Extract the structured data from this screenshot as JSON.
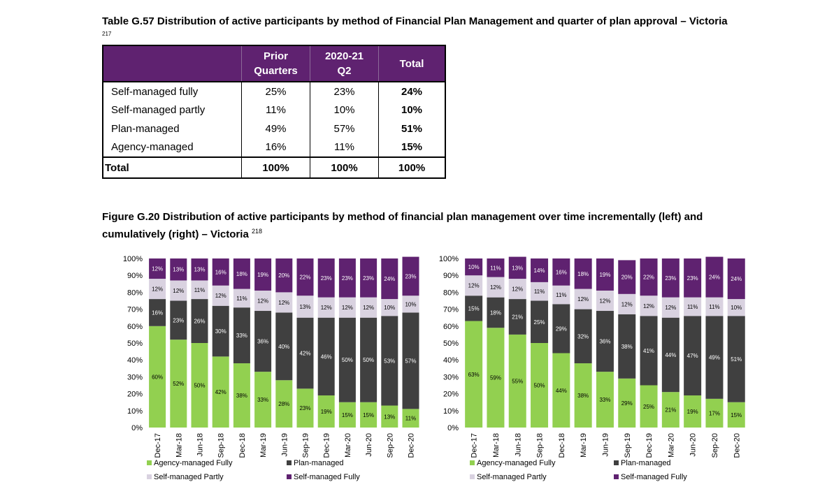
{
  "table": {
    "title": "Table G.57 Distribution of active participants by method of Financial Plan Management and quarter of plan approval – Victoria",
    "footnote_ref": "217",
    "headers": [
      "",
      "Prior Quarters",
      "2020-21 Q2",
      "Total"
    ],
    "header_lines": [
      [
        "",
        ""
      ],
      [
        "Prior",
        "Quarters"
      ],
      [
        "2020-21",
        "Q2"
      ],
      [
        "Total",
        ""
      ]
    ],
    "rows": [
      {
        "label": "Self-managed fully",
        "prior": "25%",
        "q2": "23%",
        "total": "24%"
      },
      {
        "label": "Self-managed partly",
        "prior": "11%",
        "q2": "10%",
        "total": "10%"
      },
      {
        "label": "Plan-managed",
        "prior": "49%",
        "q2": "57%",
        "total": "51%"
      },
      {
        "label": "Agency-managed",
        "prior": "16%",
        "q2": "11%",
        "total": "15%"
      }
    ],
    "total_row": {
      "label": "Total",
      "prior": "100%",
      "q2": "100%",
      "total": "100%"
    }
  },
  "figure": {
    "title_line1": "Figure G.20 Distribution of active participants by method of financial plan management over time incrementally (left) and",
    "title_line2": "cumulatively (right) – Victoria",
    "footnote_ref": "218"
  },
  "colors": {
    "agency": "#92d050",
    "plan": "#404040",
    "self_partly": "#d9d2e0",
    "self_fully": "#5f2270",
    "header_bg": "#5f2270"
  },
  "chart_data": [
    {
      "type": "bar",
      "stacked": true,
      "categories": [
        "Dec-17",
        "Mar-18",
        "Jun-18",
        "Sep-18",
        "Dec-18",
        "Mar-19",
        "Jun-19",
        "Sep-19",
        "Dec-19",
        "Mar-20",
        "Jun-20",
        "Sep-20",
        "Dec-20"
      ],
      "ylim": [
        0,
        100
      ],
      "yticks": [
        "0%",
        "10%",
        "20%",
        "30%",
        "40%",
        "50%",
        "60%",
        "70%",
        "80%",
        "90%",
        "100%"
      ],
      "legend_position": "bottom",
      "series": [
        {
          "name": "Agency-managed Fully",
          "color": "#92d050",
          "values": [
            60,
            52,
            50,
            42,
            38,
            33,
            28,
            23,
            19,
            15,
            15,
            13,
            11
          ]
        },
        {
          "name": "Plan-managed",
          "color": "#404040",
          "values": [
            16,
            23,
            26,
            30,
            33,
            36,
            40,
            42,
            46,
            50,
            50,
            53,
            57
          ]
        },
        {
          "name": "Self-managed Partly",
          "color": "#d9d2e0",
          "values": [
            12,
            12,
            11,
            12,
            11,
            12,
            12,
            13,
            12,
            12,
            12,
            10,
            10
          ]
        },
        {
          "name": "Self-managed Fully",
          "color": "#5f2270",
          "values": [
            12,
            13,
            13,
            16,
            18,
            19,
            20,
            22,
            23,
            23,
            23,
            24,
            23
          ]
        }
      ]
    },
    {
      "type": "bar",
      "stacked": true,
      "categories": [
        "Dec-17",
        "Mar-18",
        "Jun-18",
        "Sep-18",
        "Dec-18",
        "Mar-19",
        "Jun-19",
        "Sep-19",
        "Dec-19",
        "Mar-20",
        "Jun-20",
        "Sep-20",
        "Dec-20"
      ],
      "ylim": [
        0,
        100
      ],
      "yticks": [
        "0%",
        "10%",
        "20%",
        "30%",
        "40%",
        "50%",
        "60%",
        "70%",
        "80%",
        "90%",
        "100%"
      ],
      "legend_position": "bottom",
      "series": [
        {
          "name": "Agency-managed Fully",
          "color": "#92d050",
          "values": [
            63,
            59,
            55,
            50,
            44,
            38,
            33,
            29,
            25,
            21,
            19,
            17,
            15
          ]
        },
        {
          "name": "Plan-managed",
          "color": "#404040",
          "values": [
            15,
            18,
            21,
            25,
            29,
            32,
            36,
            38,
            41,
            44,
            47,
            49,
            51
          ]
        },
        {
          "name": "Self-managed Partly",
          "color": "#d9d2e0",
          "values": [
            12,
            12,
            12,
            11,
            11,
            12,
            12,
            12,
            12,
            12,
            11,
            11,
            10
          ]
        },
        {
          "name": "Self-managed Fully",
          "color": "#5f2270",
          "values": [
            10,
            11,
            13,
            14,
            16,
            18,
            19,
            20,
            22,
            23,
            23,
            24,
            24
          ]
        }
      ]
    }
  ]
}
